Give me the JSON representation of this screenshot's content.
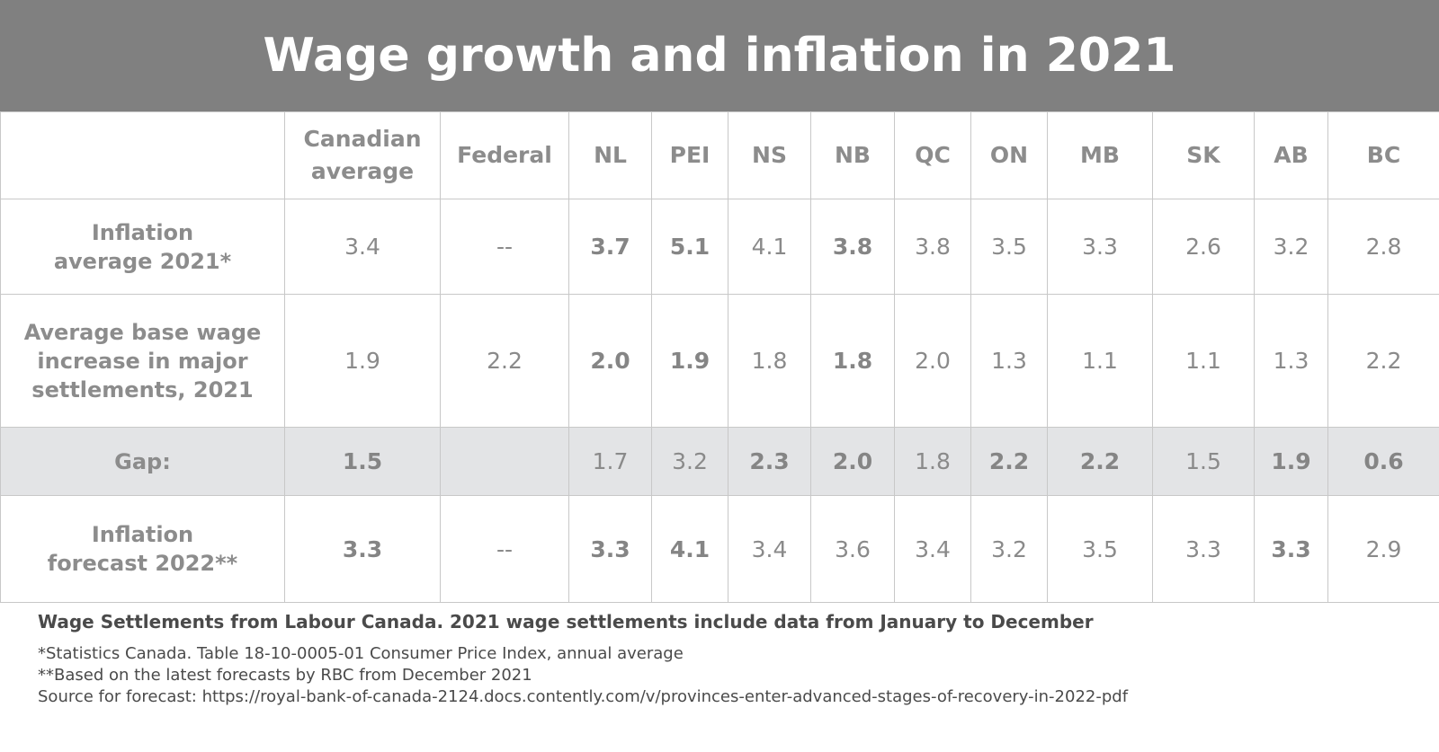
{
  "title": "Wage growth and inflation in 2021",
  "chart_data": {
    "type": "table",
    "columns": [
      "Canadian average",
      "Federal",
      "NL",
      "PEI",
      "NS",
      "NB",
      "QC",
      "ON",
      "MB",
      "SK",
      "AB",
      "BC"
    ],
    "rows": [
      {
        "label": "Inflation average 2021*",
        "values": [
          "3.4",
          "--",
          "3.7",
          "5.1",
          "4.1",
          "3.8",
          "3.8",
          "3.5",
          "3.3",
          "2.6",
          "3.2",
          "2.8"
        ]
      },
      {
        "label": "Average base wage increase in major settlements, 2021",
        "values": [
          "1.9",
          "2.2",
          "2.0",
          "1.9",
          "1.8",
          "1.8",
          "2.0",
          "1.3",
          "1.1",
          "1.1",
          "1.3",
          "2.2"
        ]
      },
      {
        "label": "Gap:",
        "values": [
          "1.5",
          "",
          "1.7",
          "3.2",
          "2.3",
          "2.0",
          "1.8",
          "2.2",
          "2.2",
          "1.5",
          "1.9",
          "0.6"
        ]
      },
      {
        "label": "Inflation forecast 2022**",
        "values": [
          "3.3",
          "--",
          "3.3",
          "4.1",
          "3.4",
          "3.6",
          "3.4",
          "3.2",
          "3.5",
          "3.3",
          "3.3",
          "2.9"
        ]
      }
    ]
  },
  "notes": {
    "lead": "Wage Settlements from Labour Canada. 2021 wage settlements include data from January to December",
    "footnotes": [
      "*Statistics Canada.  Table  18-10-0005-01   Consumer Price Index, annual average",
      "**Based on the latest forecasts by RBC from December 2021",
      "Source for forecast: https://royal-bank-of-canada-2124.docs.contently.com/v/provinces-enter-advanced-stages-of-recovery-in-2022-pdf"
    ]
  },
  "colors": {
    "banner": "#808080",
    "gap_row": "#e3e4e6",
    "text": "#8a8a8a",
    "notes_text": "#4a4a4a"
  }
}
